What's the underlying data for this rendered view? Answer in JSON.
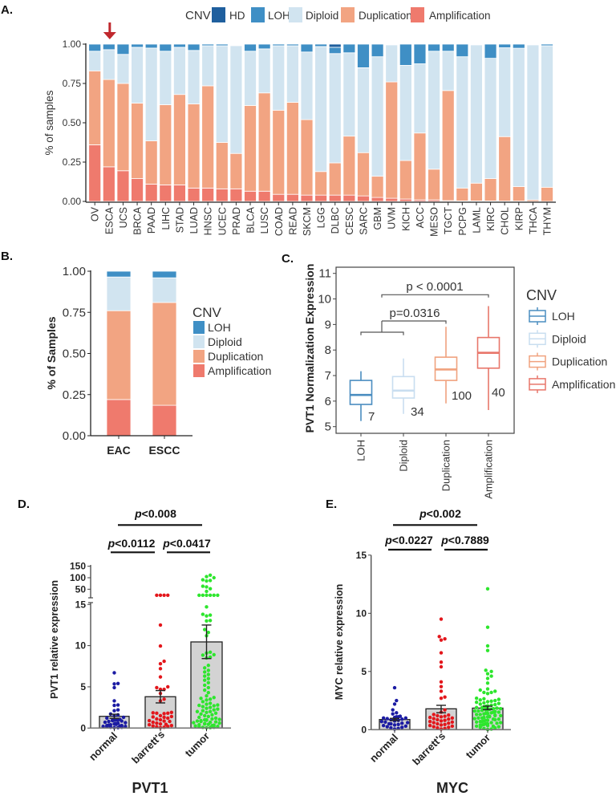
{
  "chart_data": [
    {
      "id": "A",
      "panel_label": "A.",
      "type": "bar",
      "stacked": true,
      "ylabel": "% of samples",
      "xlabel": "",
      "ylim": [
        0,
        1
      ],
      "yticks": [
        {
          "value": 0,
          "label": "0.00"
        },
        {
          "value": 0.25,
          "label": "0.25"
        },
        {
          "value": 0.5,
          "label": "0.50"
        },
        {
          "value": 0.75,
          "label": "0.75"
        },
        {
          "value": 1,
          "label": "1.00"
        }
      ],
      "legend_title": "CNV",
      "legend_placement": "top",
      "legend": [
        {
          "label": "HD",
          "color": "#1f5f9e"
        },
        {
          "label": "LOH",
          "color": "#3f8fc5"
        },
        {
          "label": "Diploid",
          "color": "#d1e4f0"
        },
        {
          "label": "Duplication",
          "color": "#f2a482"
        },
        {
          "label": "Amplification",
          "color": "#ef7a6d"
        }
      ],
      "annotation": {
        "type": "arrow",
        "target_category": "ESCA",
        "color": "#c0282d"
      },
      "categories": [
        "OV",
        "ESCA",
        "UCS",
        "BRCA",
        "PAAD",
        "LIHC",
        "STAD",
        "LUAD",
        "HNSC",
        "UCEC",
        "PRAD",
        "BLCA",
        "LUSC",
        "COAD",
        "READ",
        "SKCM",
        "LGG",
        "DLBC",
        "CESC",
        "SARC",
        "GBM",
        "UVM",
        "KICH",
        "ACC",
        "MESO",
        "TGCT",
        "PCPG",
        "LAML",
        "KIRC",
        "CHOL",
        "KIRP",
        "THCA",
        "THYM"
      ],
      "series": [
        {
          "name": "Amplification",
          "color": "#ef7a6d",
          "values": [
            0.36,
            0.22,
            0.195,
            0.145,
            0.11,
            0.105,
            0.105,
            0.085,
            0.085,
            0.08,
            0.08,
            0.065,
            0.065,
            0.045,
            0.045,
            0.04,
            0.04,
            0.04,
            0.04,
            0.035,
            0.025,
            0.02,
            0.015,
            0.01,
            0.01,
            0.005,
            0.003,
            0.003,
            0.003,
            0.002,
            0.002,
            0.0,
            0.0
          ]
        },
        {
          "name": "Duplication",
          "color": "#f2a482",
          "values": [
            0.47,
            0.555,
            0.555,
            0.48,
            0.275,
            0.51,
            0.575,
            0.535,
            0.65,
            0.295,
            0.225,
            0.545,
            0.625,
            0.535,
            0.585,
            0.48,
            0.15,
            0.205,
            0.375,
            0.275,
            0.135,
            0.74,
            0.245,
            0.425,
            0.195,
            0.7,
            0.082,
            0.113,
            0.142,
            0.41,
            0.092,
            0.01,
            0.09
          ]
        },
        {
          "name": "Diploid",
          "color": "#d1e4f0",
          "values": [
            0.125,
            0.19,
            0.185,
            0.355,
            0.59,
            0.34,
            0.3,
            0.34,
            0.255,
            0.615,
            0.685,
            0.345,
            0.28,
            0.41,
            0.36,
            0.43,
            0.795,
            0.695,
            0.53,
            0.54,
            0.76,
            0.235,
            0.605,
            0.44,
            0.75,
            0.25,
            0.835,
            0.879,
            0.765,
            0.565,
            0.88,
            0.985,
            0.9
          ]
        },
        {
          "name": "LOH",
          "color": "#3f8fc5",
          "values": [
            0.045,
            0.035,
            0.065,
            0.02,
            0.025,
            0.045,
            0.02,
            0.04,
            0.01,
            0.01,
            0.0,
            0.045,
            0.03,
            0.01,
            0.01,
            0.05,
            0.015,
            0.04,
            0.055,
            0.15,
            0.08,
            0.0,
            0.135,
            0.125,
            0.045,
            0.045,
            0.08,
            0.0,
            0.09,
            0.023,
            0.026,
            0.0,
            0.01
          ]
        },
        {
          "name": "HD",
          "color": "#1f5f9e",
          "values": [
            0,
            0,
            0,
            0,
            0,
            0,
            0,
            0,
            0,
            0,
            0,
            0,
            0,
            0,
            0,
            0,
            0,
            0.02,
            0,
            0,
            0,
            0,
            0,
            0,
            0,
            0,
            0,
            0,
            0,
            0,
            0,
            0,
            0
          ]
        }
      ]
    },
    {
      "id": "B",
      "panel_label": "B.",
      "type": "bar",
      "stacked": true,
      "ylabel": "% of Samples",
      "xlabel": "",
      "ylim": [
        0,
        1
      ],
      "yticks": [
        {
          "value": 0,
          "label": "0.00"
        },
        {
          "value": 0.25,
          "label": "0.25"
        },
        {
          "value": 0.5,
          "label": "0.50"
        },
        {
          "value": 0.75,
          "label": "0.75"
        },
        {
          "value": 1,
          "label": "1.00"
        }
      ],
      "legend_title": "CNV",
      "legend_placement": "right",
      "legend": [
        {
          "label": "LOH",
          "color": "#3f8fc5"
        },
        {
          "label": "Diploid",
          "color": "#d1e4f0"
        },
        {
          "label": "Duplication",
          "color": "#f2a482"
        },
        {
          "label": "Amplification",
          "color": "#ef7a6d"
        }
      ],
      "categories": [
        "EAC",
        "ESCC"
      ],
      "series": [
        {
          "name": "Amplification",
          "color": "#ef7a6d",
          "values": [
            0.22,
            0.185
          ]
        },
        {
          "name": "Duplication",
          "color": "#f2a482",
          "values": [
            0.54,
            0.625
          ]
        },
        {
          "name": "Diploid",
          "color": "#d1e4f0",
          "values": [
            0.205,
            0.15
          ]
        },
        {
          "name": "LOH",
          "color": "#3f8fc5",
          "values": [
            0.035,
            0.04
          ]
        }
      ]
    },
    {
      "id": "C",
      "panel_label": "C.",
      "type": "box",
      "ylabel": "PVT1 Normalization Expression",
      "xlabel": "",
      "ylim": [
        5,
        11
      ],
      "yticks": [
        {
          "value": 5,
          "label": "5"
        },
        {
          "value": 6,
          "label": "6"
        },
        {
          "value": 7,
          "label": "7"
        },
        {
          "value": 8,
          "label": "8"
        },
        {
          "value": 9,
          "label": "9"
        },
        {
          "value": 10,
          "label": "10"
        },
        {
          "value": 11,
          "label": "11"
        }
      ],
      "legend_title": "CNV",
      "legend_placement": "right",
      "categories": [
        "LOH",
        "Diploid",
        "Duplication",
        "Amplification"
      ],
      "colors": [
        "#4a8dc0",
        "#c9def0",
        "#f0a27e",
        "#e8766a"
      ],
      "boxes": [
        {
          "whisker_low": 5.22,
          "q1": 5.87,
          "median": 6.24,
          "q3": 6.81,
          "whisker_high": 7.17,
          "n": "7"
        },
        {
          "whisker_low": 5.5,
          "q1": 6.12,
          "median": 6.41,
          "q3": 6.96,
          "whisker_high": 7.67,
          "n": "34"
        },
        {
          "whisker_low": 5.91,
          "q1": 6.81,
          "median": 7.24,
          "q3": 7.72,
          "whisker_high": 8.91,
          "n": "100"
        },
        {
          "whisker_low": 5.65,
          "q1": 7.29,
          "median": 7.89,
          "q3": 8.49,
          "whisker_high": 9.72,
          "n": "40"
        }
      ],
      "comparisons": [
        {
          "label": "p=0.0316",
          "left": "LOH + Diploid",
          "right": "Duplication"
        },
        {
          "label": "p < 0.0001",
          "left": "LOH + Diploid",
          "right": "Amplification"
        }
      ]
    },
    {
      "id": "D",
      "panel_label": "D.",
      "type": "bar",
      "title": "PVT1",
      "ylabel": "PVT1 relative expression",
      "xlabel": "",
      "categories": [
        "normal",
        "barrett's",
        "tumor"
      ],
      "colors": [
        "#1b1ba3",
        "#e3161b",
        "#2de62d"
      ],
      "bar_fill": "#d3d3d3",
      "means": [
        1.42,
        3.8,
        10.45
      ],
      "error_low": [
        1.17,
        3.05,
        8.43
      ],
      "error_high": [
        1.68,
        4.55,
        12.5
      ],
      "yaxis": {
        "broken": true,
        "lower_range": [
          0,
          15
        ],
        "upper_range": [
          20,
          150
        ],
        "lower_ticks": [
          {
            "value": 0,
            "label": "0"
          },
          {
            "value": 5,
            "label": "5"
          },
          {
            "value": 10,
            "label": "10"
          },
          {
            "value": 15,
            "label": "15"
          }
        ],
        "upper_ticks": [
          {
            "value": 50,
            "label": "50"
          },
          {
            "value": 100,
            "label": "100"
          },
          {
            "value": 150,
            "label": "150"
          }
        ]
      },
      "points": [
        [
          6.7,
          5.4,
          5.35,
          4.9,
          3.3,
          2.8,
          2.75,
          2.2,
          2.1,
          1.7,
          1.6,
          1.5,
          1.3,
          1.2,
          1.05,
          1.0,
          1.0,
          0.95,
          0.95,
          0.9,
          0.85,
          0.8,
          0.7,
          0.65,
          0.6,
          0.55,
          0.5,
          0.45,
          0.4,
          0.35,
          0.3,
          0.3,
          0.25,
          0.2,
          0.2,
          0.15,
          0.1,
          0.1,
          0.05,
          0.05
        ],
        [
          25,
          25,
          25,
          25,
          12.5,
          9.95,
          8.1,
          7.8,
          7.2,
          6.2,
          5.0,
          4.9,
          4.7,
          4.7,
          4.2,
          3.5,
          3.3,
          1.9,
          1.85,
          1.8,
          1.8,
          1.75,
          1.5,
          1.4,
          1.35,
          1.3,
          1.2,
          1.1,
          1.0,
          0.9,
          0.85,
          0.8,
          0.7,
          0.6,
          0.5,
          0.45,
          0.4,
          0.3,
          0.25,
          0.2,
          0.15,
          0.1,
          0.05
        ],
        [
          111,
          105,
          100,
          91,
          88,
          86,
          63,
          60,
          52,
          41,
          25,
          25,
          25,
          25,
          25,
          25,
          14.7,
          13.8,
          13.7,
          13.6,
          13.05,
          13.0,
          11.95,
          11.6,
          11.2,
          9.2,
          9.1,
          8.9,
          8.85,
          8.6,
          8.5,
          7.6,
          7.3,
          7.0,
          6.8,
          6.5,
          6.3,
          6.0,
          5.8,
          5.5,
          5.2,
          4.9,
          4.6,
          4.3,
          3.9,
          3.7,
          3.6,
          3.5,
          3.4,
          3.2,
          3.0,
          2.9,
          2.8,
          2.75,
          2.7,
          2.6,
          2.5,
          2.4,
          2.3,
          2.2,
          2.1,
          2.0,
          2.0,
          1.9,
          1.8,
          1.7,
          1.6,
          1.5,
          1.4,
          1.3,
          1.2,
          1.1,
          1.05,
          1.0,
          1.0,
          0.95,
          0.9,
          0.85,
          0.8,
          0.75,
          0.7,
          0.65,
          0.6,
          0.55,
          0.5,
          0.45,
          0.4,
          0.35,
          0.3,
          0.25,
          0.2,
          0.15,
          0.1,
          0.08,
          0.05,
          0.03
        ]
      ],
      "significance": [
        {
          "p": "p",
          "value": "<0.008",
          "groups": [
            "normal",
            "tumor"
          ]
        },
        {
          "p": "p",
          "value": "<0.0112",
          "groups": [
            "normal",
            "barrett's"
          ]
        },
        {
          "p": "p",
          "value": "<0.0417",
          "groups": [
            "barrett's",
            "tumor"
          ]
        }
      ]
    },
    {
      "id": "E",
      "panel_label": "E.",
      "type": "bar",
      "title": "MYC",
      "ylabel": "MYC relative expression",
      "xlabel": "",
      "ylim": [
        0,
        15
      ],
      "categories": [
        "normal",
        "barrett's",
        "tumor"
      ],
      "colors": [
        "#1b1ba3",
        "#e3161b",
        "#2de62d"
      ],
      "bar_fill": "#d3d3d3",
      "means": [
        0.87,
        1.79,
        1.85
      ],
      "error_low": [
        0.78,
        1.45,
        1.72
      ],
      "error_high": [
        0.97,
        2.09,
        2.02
      ],
      "yticks": [
        {
          "value": 0,
          "label": "0"
        },
        {
          "value": 5,
          "label": "5"
        },
        {
          "value": 10,
          "label": "10"
        },
        {
          "value": 15,
          "label": "15"
        }
      ],
      "points": [
        [
          3.6,
          2.5,
          2.2,
          1.7,
          1.45,
          1.35,
          1.15,
          1.1,
          1.1,
          1.05,
          1.0,
          1.0,
          0.95,
          0.9,
          0.85,
          0.8,
          0.75,
          0.7,
          0.65,
          0.6,
          0.55,
          0.5,
          0.5,
          0.45,
          0.4,
          0.35,
          0.3,
          0.25,
          0.2,
          0.15,
          0.1,
          0.05
        ],
        [
          9.5,
          8.0,
          7.8,
          7.7,
          6.6,
          5.8,
          5.4,
          4.1,
          3.7,
          3.3,
          2.8,
          2.7,
          1.7,
          1.5,
          1.3,
          1.25,
          1.2,
          1.15,
          1.1,
          1.05,
          1.0,
          0.95,
          0.9,
          0.85,
          0.8,
          0.75,
          0.7,
          0.65,
          0.6,
          0.55,
          0.5,
          0.45,
          0.4,
          0.35,
          0.3,
          0.25,
          0.2,
          0.15,
          0.1,
          0.05
        ],
        [
          12.1,
          8.8,
          7.2,
          6.8,
          5.1,
          5.0,
          4.8,
          4.6,
          4.4,
          4.0,
          3.5,
          3.4,
          3.3,
          3.2,
          3.2,
          3.1,
          2.7,
          2.65,
          2.6,
          2.55,
          2.5,
          2.45,
          2.4,
          2.35,
          2.3,
          2.25,
          2.2,
          2.15,
          2.1,
          2.05,
          2.0,
          1.95,
          1.9,
          1.85,
          1.8,
          1.75,
          1.7,
          1.65,
          1.6,
          1.55,
          1.5,
          1.45,
          1.4,
          1.35,
          1.3,
          1.25,
          1.2,
          1.15,
          1.1,
          1.05,
          1.0,
          0.95,
          0.9,
          0.85,
          0.8,
          0.75,
          0.7,
          0.65,
          0.6,
          0.55,
          0.5,
          0.45,
          0.4,
          0.35,
          0.3,
          0.25,
          0.2,
          0.15,
          0.1,
          0.05,
          0.02,
          0.3,
          0.6,
          0.9,
          1.2,
          1.5,
          1.8,
          0.4,
          0.7,
          1.0,
          1.3,
          1.6,
          1.9,
          0.5,
          0.8,
          1.1,
          1.4,
          1.7
        ]
      ],
      "significance": [
        {
          "p": "p",
          "value": "<0.002",
          "groups": [
            "normal",
            "tumor"
          ]
        },
        {
          "p": "p",
          "value": "<0.0227",
          "groups": [
            "normal",
            "barrett's"
          ]
        },
        {
          "p": "p",
          "value": "<0.7889",
          "groups": [
            "barrett's",
            "tumor"
          ]
        }
      ]
    }
  ]
}
